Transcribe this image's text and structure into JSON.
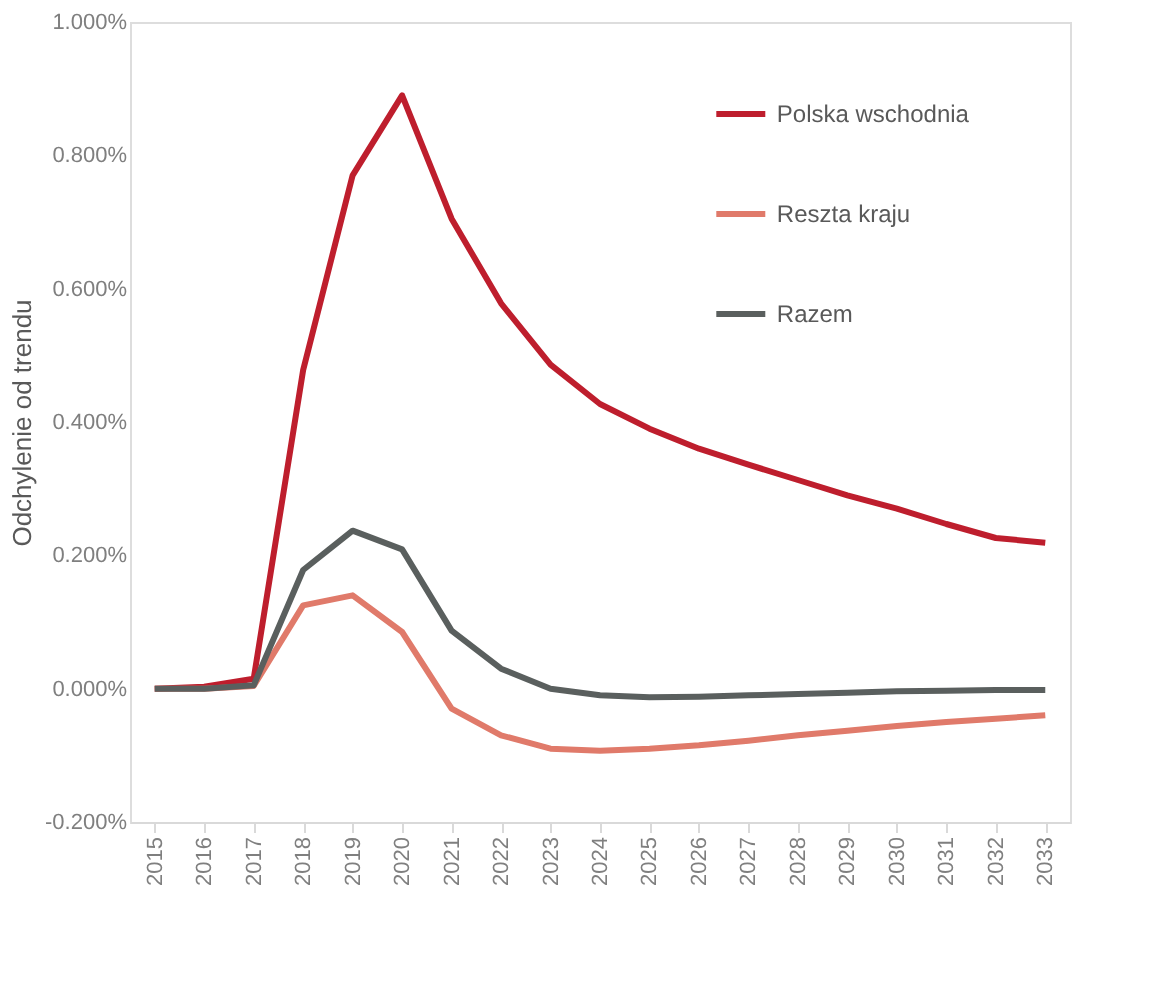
{
  "chart_data": {
    "type": "line",
    "ylabel": "Odchylenie od trendu",
    "categories": [
      "2015",
      "2016",
      "2017",
      "2018",
      "2019",
      "2020",
      "2021",
      "2022",
      "2023",
      "2024",
      "2025",
      "2026",
      "2027",
      "2028",
      "2029",
      "2030",
      "2031",
      "2032",
      "2033"
    ],
    "series": [
      {
        "name": "Polska wschodnia",
        "color": "#be1e2d",
        "values": [
          0,
          0.003,
          0.015,
          0.478,
          0.77,
          0.89,
          0.705,
          0.578,
          0.486,
          0.427,
          0.39,
          0.36,
          0.336,
          0.313,
          0.29,
          0.27,
          0.247,
          0.226,
          0.219
        ]
      },
      {
        "name": "Reszta kraju",
        "color": "#e07a6a",
        "values": [
          0,
          0,
          0.004,
          0.125,
          0.14,
          0.085,
          -0.03,
          -0.07,
          -0.09,
          -0.093,
          -0.09,
          -0.085,
          -0.078,
          -0.07,
          -0.063,
          -0.056,
          -0.05,
          -0.045,
          -0.04
        ]
      },
      {
        "name": "Razem",
        "color": "#5a5f5e",
        "values": [
          0,
          0,
          0.005,
          0.178,
          0.237,
          0.209,
          0.087,
          0.03,
          0,
          -0.01,
          -0.013,
          -0.012,
          -0.01,
          -0.008,
          -0.006,
          -0.004,
          -0.003,
          -0.002,
          -0.002
        ]
      }
    ],
    "ylim": [
      -0.2,
      1.0
    ],
    "yticks": [
      {
        "value": -0.2,
        "label": "-0.200%"
      },
      {
        "value": 0,
        "label": "0.000%"
      },
      {
        "value": 0.2,
        "label": "0.200%"
      },
      {
        "value": 0.4,
        "label": "0.400%"
      },
      {
        "value": 0.6,
        "label": "0.600%"
      },
      {
        "value": 0.8,
        "label": "0.800%"
      },
      {
        "value": 1.0,
        "label": "1.000%"
      }
    ],
    "grid": false,
    "legend": "top right",
    "marker": "none",
    "line_style": "solid"
  }
}
